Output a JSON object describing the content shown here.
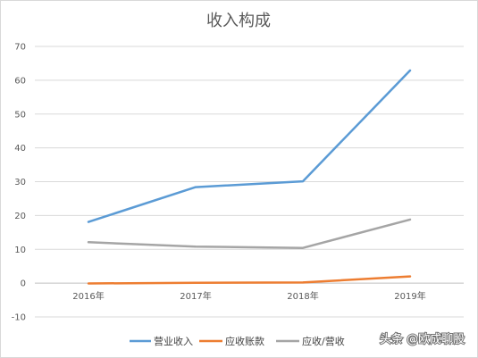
{
  "chart_data": {
    "type": "line",
    "title": "收入构成",
    "categories": [
      "2016年",
      "2017年",
      "2018年",
      "2019年"
    ],
    "ylim": [
      -10,
      70
    ],
    "yticks": [
      70,
      60,
      50,
      40,
      30,
      20,
      10,
      0,
      -10
    ],
    "grid": true,
    "legend_position": "bottom",
    "series": [
      {
        "name": "营业收入",
        "color": "#5b9bd5",
        "values": [
          18.1,
          28.4,
          30.1,
          62.9
        ]
      },
      {
        "name": "应收账款",
        "color": "#ed7d31",
        "values": [
          -0.1,
          0.1,
          0.2,
          2.0
        ]
      },
      {
        "name": "应收/营收",
        "color": "#a5a5a5",
        "values": [
          12.1,
          10.8,
          10.4,
          18.8
        ]
      }
    ]
  },
  "watermark": "头条 @欧成聊股"
}
